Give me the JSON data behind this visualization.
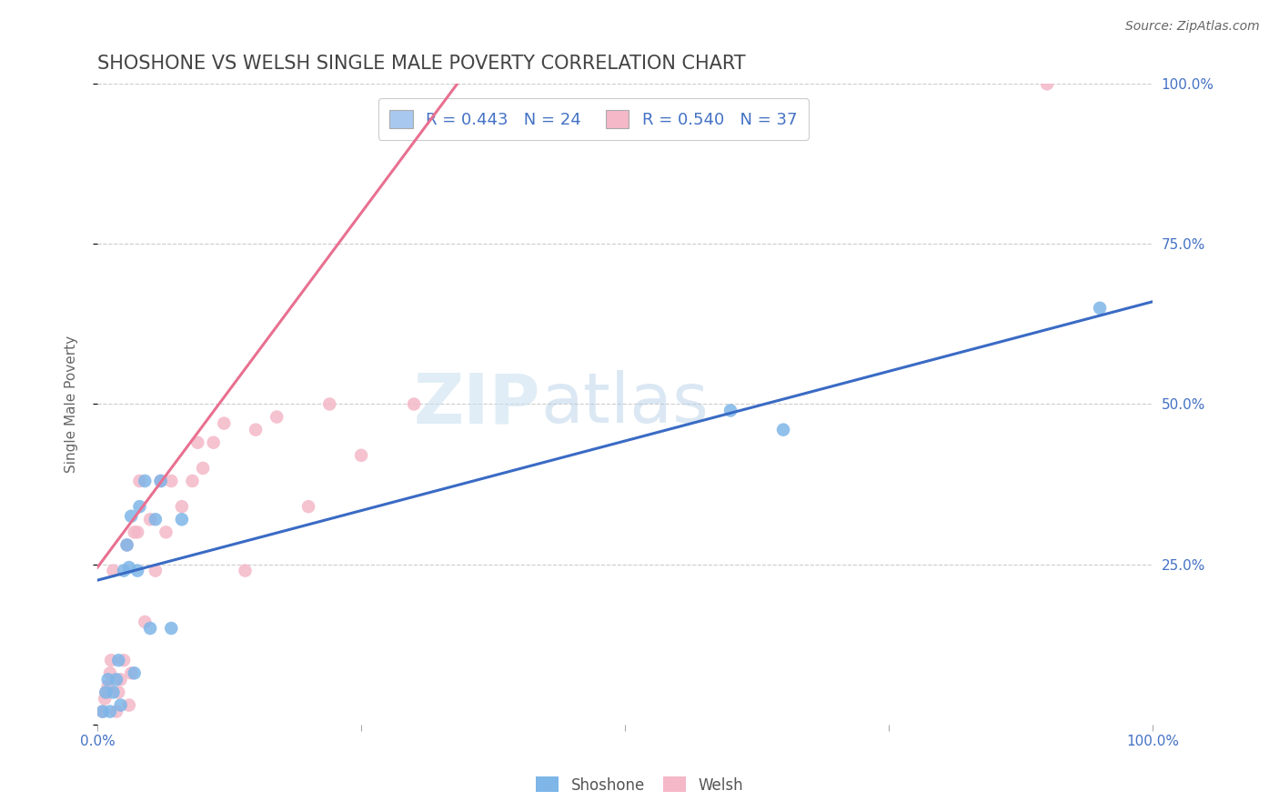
{
  "title": "SHOSHONE VS WELSH SINGLE MALE POVERTY CORRELATION CHART",
  "source": "Source: ZipAtlas.com",
  "ylabel": "Single Male Poverty",
  "xlim": [
    0,
    1
  ],
  "ylim": [
    0,
    1
  ],
  "shoshone_R": 0.443,
  "shoshone_N": 24,
  "welsh_R": 0.54,
  "welsh_N": 37,
  "shoshone_color": "#7eb6e8",
  "welsh_color": "#f4b8c8",
  "shoshone_line_color": "#3a6bc4",
  "welsh_line_color": "#e87090",
  "watermark_zip": "ZIP",
  "watermark_atlas": "atlas",
  "shoshone_x": [
    0.005,
    0.008,
    0.01,
    0.012,
    0.015,
    0.018,
    0.02,
    0.022,
    0.025,
    0.028,
    0.03,
    0.032,
    0.035,
    0.038,
    0.04,
    0.045,
    0.05,
    0.055,
    0.06,
    0.07,
    0.08,
    0.6,
    0.65,
    0.95
  ],
  "shoshone_y": [
    0.02,
    0.05,
    0.07,
    0.02,
    0.05,
    0.07,
    0.1,
    0.03,
    0.24,
    0.28,
    0.245,
    0.325,
    0.08,
    0.24,
    0.34,
    0.38,
    0.15,
    0.32,
    0.38,
    0.15,
    0.32,
    0.49,
    0.46,
    0.65
  ],
  "welsh_x": [
    0.005,
    0.007,
    0.008,
    0.01,
    0.012,
    0.013,
    0.015,
    0.018,
    0.02,
    0.022,
    0.025,
    0.028,
    0.03,
    0.032,
    0.035,
    0.038,
    0.04,
    0.045,
    0.05,
    0.055,
    0.06,
    0.065,
    0.07,
    0.08,
    0.09,
    0.095,
    0.1,
    0.11,
    0.12,
    0.14,
    0.15,
    0.17,
    0.2,
    0.22,
    0.25,
    0.3,
    0.9
  ],
  "welsh_y": [
    0.02,
    0.04,
    0.05,
    0.06,
    0.08,
    0.1,
    0.24,
    0.02,
    0.05,
    0.07,
    0.1,
    0.28,
    0.03,
    0.08,
    0.3,
    0.3,
    0.38,
    0.16,
    0.32,
    0.24,
    0.38,
    0.3,
    0.38,
    0.34,
    0.38,
    0.44,
    0.4,
    0.44,
    0.47,
    0.24,
    0.46,
    0.48,
    0.34,
    0.5,
    0.42,
    0.5,
    1.0
  ],
  "shoshone_line_x": [
    0.0,
    1.0
  ],
  "shoshone_line_y": [
    0.225,
    0.66
  ],
  "welsh_line_x": [
    0.0,
    0.35
  ],
  "welsh_line_y": [
    0.245,
    1.02
  ]
}
